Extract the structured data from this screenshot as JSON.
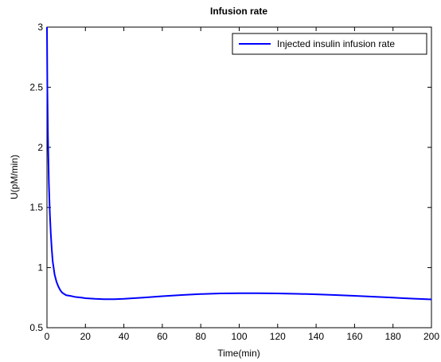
{
  "chart_data": {
    "type": "line",
    "title": "Infusion rate",
    "xlabel": "Time(min)",
    "ylabel": "U(pM/min)",
    "xlim": [
      0,
      200
    ],
    "ylim": [
      0.5,
      3
    ],
    "x_ticks": [
      "0",
      "20",
      "40",
      "60",
      "80",
      "100",
      "120",
      "140",
      "160",
      "180",
      "200"
    ],
    "y_ticks": [
      "0.5",
      "1",
      "1.5",
      "2",
      "2.5",
      "3"
    ],
    "grid": false,
    "legend_position": "top-right",
    "series": [
      {
        "name": "Injected insulin infusion rate",
        "color": "#0000ff",
        "x": [
          0,
          0.2,
          0.5,
          1,
          1.5,
          2,
          2.5,
          3,
          4,
          5,
          6,
          7,
          8,
          10,
          12,
          15,
          18,
          20,
          25,
          30,
          35,
          40,
          50,
          60,
          70,
          80,
          90,
          100,
          110,
          120,
          130,
          140,
          150,
          160,
          170,
          180,
          190,
          200
        ],
        "y": [
          3.0,
          2.5,
          2.1,
          1.7,
          1.45,
          1.28,
          1.15,
          1.05,
          0.94,
          0.88,
          0.84,
          0.81,
          0.79,
          0.77,
          0.765,
          0.755,
          0.75,
          0.745,
          0.74,
          0.737,
          0.737,
          0.74,
          0.75,
          0.762,
          0.772,
          0.78,
          0.785,
          0.787,
          0.787,
          0.785,
          0.782,
          0.778,
          0.772,
          0.765,
          0.758,
          0.75,
          0.742,
          0.735
        ]
      }
    ]
  }
}
